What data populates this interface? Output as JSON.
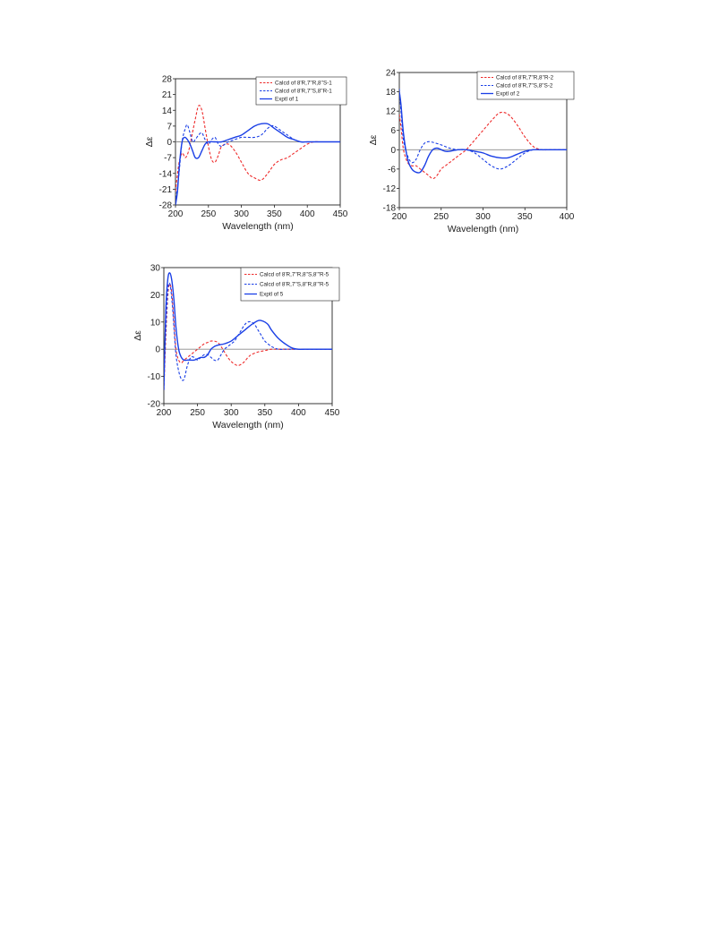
{
  "colors": {
    "red": "#ee2b2b",
    "blue": "#1a3fe6",
    "axis": "#222222",
    "zero": "#8a8a8a"
  },
  "chart_data": [
    {
      "type": "line",
      "xlabel": "Wavelength (nm)",
      "ylabel": "Δε",
      "xlim": [
        200,
        450
      ],
      "ylim": [
        -28,
        28
      ],
      "xticks": [
        200,
        250,
        300,
        350,
        400,
        450
      ],
      "yticks": [
        -28,
        -21,
        -14,
        -7,
        0,
        7,
        14,
        21,
        28
      ],
      "grid": false,
      "legend_position": "top-right",
      "series": [
        {
          "name": "Calcd of 8'R,7''R,8''S-1",
          "color": "#ee2b2b",
          "dash": true,
          "x": [
            200,
            205,
            210,
            215,
            220,
            225,
            230,
            235,
            240,
            245,
            250,
            255,
            260,
            265,
            270,
            280,
            290,
            300,
            310,
            320,
            330,
            340,
            350,
            360,
            370,
            380,
            390,
            400,
            410,
            420,
            430,
            440,
            450
          ],
          "y": [
            -22,
            -10,
            -5,
            -7,
            -4,
            3,
            10,
            16,
            14,
            6,
            -2,
            -8,
            -9,
            -6,
            -2,
            -1,
            -4,
            -9,
            -14,
            -16,
            -17,
            -14,
            -10,
            -8,
            -7,
            -5,
            -3,
            -1,
            0,
            0,
            0,
            0,
            0
          ]
        },
        {
          "name": "Calcd of 8'R,7''S,8''R-1",
          "color": "#1a3fe6",
          "dash": true,
          "x": [
            200,
            205,
            210,
            215,
            218,
            222,
            226,
            230,
            235,
            240,
            245,
            250,
            255,
            260,
            265,
            270,
            275,
            280,
            290,
            300,
            310,
            320,
            330,
            340,
            345,
            350,
            360,
            370,
            380,
            390,
            400,
            410,
            450
          ],
          "y": [
            -27,
            -15,
            0,
            6,
            7.5,
            4,
            0,
            1,
            3,
            4,
            1,
            -1,
            1,
            2,
            -1,
            -2,
            -1,
            0,
            1,
            2,
            2,
            2,
            3,
            6,
            7,
            7,
            5,
            3,
            1,
            0,
            0,
            0,
            0
          ]
        },
        {
          "name": "Exptl of 1",
          "color": "#1a3fe6",
          "dash": false,
          "x": [
            200,
            203,
            206,
            210,
            214,
            218,
            222,
            226,
            230,
            235,
            240,
            245,
            250,
            260,
            270,
            280,
            290,
            300,
            310,
            320,
            330,
            340,
            350,
            360,
            370,
            380,
            390,
            400,
            410,
            450
          ],
          "y": [
            -28,
            -22,
            -10,
            0,
            2,
            1,
            -1,
            -4,
            -7,
            -7,
            -4,
            -1,
            0,
            0,
            0,
            1,
            2,
            3,
            5,
            7,
            8,
            8,
            6,
            4,
            2,
            1,
            0,
            0,
            0,
            0
          ]
        }
      ]
    },
    {
      "type": "line",
      "xlabel": "Wavelength (nm)",
      "ylabel": "Δε",
      "xlim": [
        200,
        400
      ],
      "ylim": [
        -18,
        24
      ],
      "xticks": [
        200,
        250,
        300,
        350,
        400
      ],
      "yticks": [
        -18,
        -12,
        -6,
        0,
        6,
        12,
        18,
        24
      ],
      "grid": false,
      "legend_position": "top-right",
      "series": [
        {
          "name": "Calcd of 8'R,7''R,8''R-2",
          "color": "#ee2b2b",
          "dash": true,
          "x": [
            200,
            202,
            205,
            210,
            215,
            220,
            225,
            230,
            235,
            240,
            245,
            250,
            255,
            260,
            265,
            270,
            275,
            280,
            290,
            300,
            310,
            320,
            330,
            340,
            350,
            360,
            370,
            380,
            400
          ],
          "y": [
            11,
            7,
            0,
            -4,
            -5,
            -5,
            -6,
            -7,
            -8,
            -9,
            -8,
            -6,
            -5,
            -4,
            -3,
            -2,
            -1,
            0,
            3,
            6,
            9,
            11.5,
            11,
            8,
            4,
            1,
            0,
            0,
            0
          ]
        },
        {
          "name": "Calcd of 8'R,7''S,8''S-2",
          "color": "#1a3fe6",
          "dash": true,
          "x": [
            200,
            202,
            205,
            210,
            215,
            220,
            225,
            230,
            235,
            240,
            250,
            260,
            270,
            280,
            290,
            300,
            310,
            320,
            330,
            340,
            350,
            360,
            370,
            380,
            400
          ],
          "y": [
            19,
            12,
            3,
            -2,
            -4,
            -3,
            0,
            2,
            2.5,
            2.3,
            1.5,
            0.5,
            0,
            0,
            -1,
            -3,
            -5,
            -6,
            -5,
            -3,
            -1,
            0,
            0,
            0,
            0
          ]
        },
        {
          "name": "Exptl of 2",
          "color": "#1a3fe6",
          "dash": false,
          "x": [
            200,
            202,
            205,
            210,
            215,
            220,
            225,
            230,
            235,
            240,
            245,
            250,
            255,
            260,
            270,
            280,
            290,
            300,
            310,
            320,
            330,
            340,
            350,
            360,
            370,
            400
          ],
          "y": [
            18,
            14,
            5,
            -3,
            -6,
            -7,
            -7,
            -5,
            -2,
            0,
            0.5,
            0,
            -0.5,
            -0.5,
            0,
            0,
            -0.5,
            -1,
            -2,
            -2.5,
            -2.5,
            -1.5,
            -0.5,
            0,
            0,
            0
          ]
        }
      ]
    },
    {
      "type": "line",
      "xlabel": "Wavelength (nm)",
      "ylabel": "Δε",
      "xlim": [
        200,
        450
      ],
      "ylim": [
        -20,
        30
      ],
      "xticks": [
        200,
        250,
        300,
        350,
        400,
        450
      ],
      "yticks": [
        -20,
        -10,
        0,
        10,
        20,
        30
      ],
      "grid": false,
      "legend_position": "top-right",
      "series": [
        {
          "name": "Calcd of 8'R,7''R,8''S,8'''R-5",
          "color": "#ee2b2b",
          "dash": true,
          "x": [
            200,
            203,
            206,
            209,
            212,
            215,
            218,
            222,
            226,
            230,
            235,
            240,
            245,
            250,
            255,
            260,
            265,
            270,
            275,
            280,
            285,
            290,
            295,
            300,
            305,
            310,
            315,
            320,
            325,
            330,
            340,
            350,
            360,
            370,
            380,
            400,
            450
          ],
          "y": [
            -15,
            5,
            20,
            24,
            20,
            10,
            0,
            -4,
            -5,
            -4,
            -3,
            -2,
            -1,
            0,
            1,
            2,
            2.5,
            3,
            3,
            2.5,
            1,
            -1,
            -3,
            -4.5,
            -5.5,
            -6,
            -5.5,
            -4.5,
            -3,
            -2,
            -1,
            -0.5,
            0,
            0,
            0,
            0,
            0
          ]
        },
        {
          "name": "Calcd of 8'R,7''S,8''R,8'''R-5",
          "color": "#1a3fe6",
          "dash": true,
          "x": [
            200,
            203,
            206,
            209,
            212,
            215,
            218,
            222,
            226,
            230,
            235,
            240,
            245,
            250,
            255,
            260,
            265,
            270,
            275,
            280,
            285,
            290,
            295,
            300,
            305,
            310,
            315,
            320,
            325,
            330,
            335,
            340,
            345,
            350,
            360,
            370,
            380,
            400,
            450
          ],
          "y": [
            -10,
            8,
            22,
            24,
            18,
            8,
            -2,
            -8,
            -11,
            -11,
            -6,
            -3,
            -3,
            -4,
            -3,
            -2,
            -2,
            -3,
            -4,
            -4,
            -2,
            0,
            1,
            2,
            3,
            5,
            7,
            9,
            10,
            10,
            9,
            7,
            5,
            3,
            1,
            0,
            0,
            0,
            0
          ]
        },
        {
          "name": "Exptl of 5",
          "color": "#1a3fe6",
          "dash": false,
          "x": [
            200,
            203,
            206,
            209,
            212,
            215,
            218,
            222,
            226,
            230,
            235,
            240,
            245,
            250,
            255,
            260,
            265,
            270,
            275,
            280,
            290,
            300,
            310,
            320,
            330,
            340,
            345,
            350,
            355,
            360,
            370,
            380,
            390,
            400,
            410,
            450
          ],
          "y": [
            -15,
            15,
            26,
            28,
            25,
            18,
            8,
            0,
            -3,
            -4,
            -4,
            -4,
            -4,
            -3.5,
            -3,
            -3,
            -2,
            0,
            1,
            1.5,
            2,
            3,
            5,
            7,
            9,
            10.5,
            10.5,
            10,
            9,
            7,
            4,
            2,
            0.5,
            0,
            0,
            0
          ]
        }
      ]
    }
  ]
}
